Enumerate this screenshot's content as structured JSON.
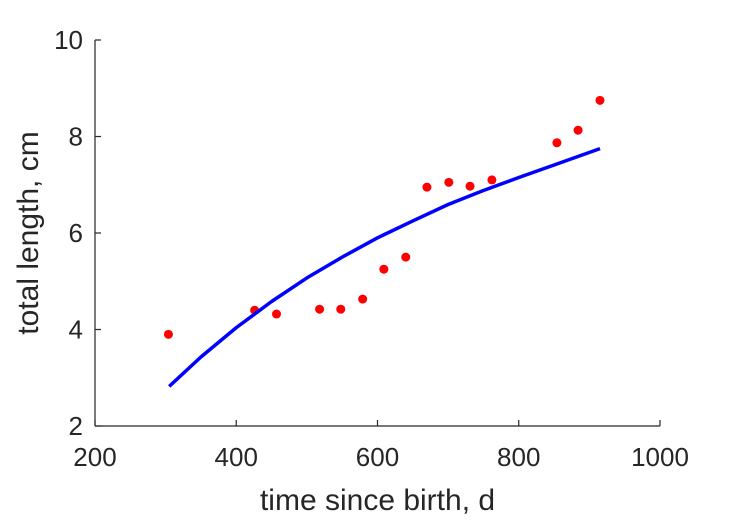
{
  "chart_data": {
    "type": "scatter",
    "xlabel": "time since birth, d",
    "ylabel": "total length, cm",
    "xlim": [
      200,
      1000
    ],
    "ylim": [
      2,
      10
    ],
    "xticks": [
      200,
      400,
      600,
      800,
      1000
    ],
    "yticks": [
      2,
      4,
      6,
      8,
      10
    ],
    "xtick_labels": [
      "200",
      "400",
      "600",
      "800",
      "1000"
    ],
    "ytick_labels": [
      "2",
      "4",
      "6",
      "8",
      "10"
    ],
    "grid": false,
    "series": [
      {
        "kind": "points",
        "color": "#ff0000",
        "x": [
          304,
          426,
          457,
          518,
          548,
          579,
          609,
          640,
          670,
          701,
          731,
          762,
          854,
          884,
          915
        ],
        "y": [
          3.9,
          4.4,
          4.32,
          4.42,
          4.42,
          4.63,
          5.25,
          5.5,
          6.95,
          7.05,
          6.97,
          7.1,
          7.87,
          8.13,
          8.75
        ]
      },
      {
        "kind": "line",
        "color": "#0000ff",
        "x": [
          305,
          350,
          400,
          450,
          500,
          550,
          600,
          650,
          700,
          750,
          800,
          850,
          915
        ],
        "y": [
          2.82,
          3.43,
          4.04,
          4.58,
          5.07,
          5.5,
          5.9,
          6.25,
          6.59,
          6.88,
          7.15,
          7.41,
          7.75
        ]
      }
    ]
  }
}
